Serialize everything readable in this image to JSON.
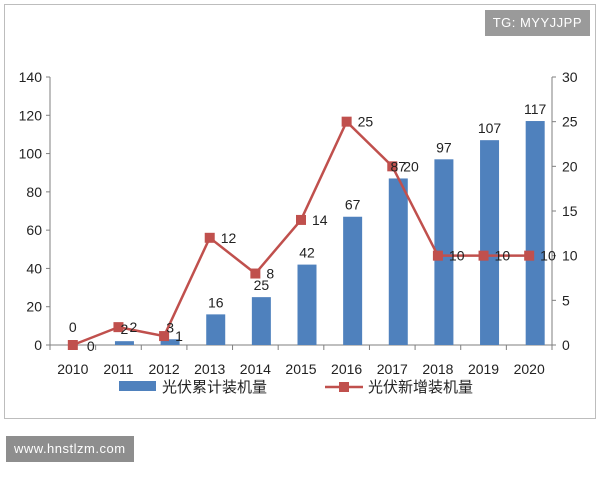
{
  "watermarks": {
    "top_right": "TG: MYYJJPP",
    "bottom_left": "www.hnstlzm.com"
  },
  "colors": {
    "bars": "#4f81bd",
    "line": "#c0504d",
    "axis": "#7f7f7f",
    "grid": "#a6a6a6"
  },
  "chart_data": {
    "type": "bar",
    "title": "",
    "categories": [
      "2010",
      "2011",
      "2012",
      "2013",
      "2014",
      "2015",
      "2016",
      "2017",
      "2018",
      "2019",
      "2020"
    ],
    "series": [
      {
        "name": "光伏累计装机量",
        "type": "bar",
        "axis": "left",
        "values": [
          0,
          2,
          3,
          16,
          25,
          42,
          67,
          87,
          97,
          107,
          117
        ]
      },
      {
        "name": "光伏新增装机量",
        "type": "line",
        "axis": "right",
        "values": [
          0,
          2,
          1,
          12,
          8,
          14,
          25,
          20,
          10,
          10,
          10
        ]
      }
    ],
    "y_left": {
      "min": 0,
      "max": 140,
      "step": 20,
      "ticks": [
        "0",
        "20",
        "40",
        "60",
        "80",
        "100",
        "120",
        "140"
      ]
    },
    "y_right": {
      "min": 0,
      "max": 30,
      "step": 5,
      "ticks": [
        "0",
        "5",
        "10",
        "15",
        "20",
        "25",
        "30"
      ]
    },
    "legend": {
      "position": "bottom",
      "entries": [
        "光伏累计装机量",
        "光伏新增装机量"
      ]
    },
    "grid": false
  }
}
